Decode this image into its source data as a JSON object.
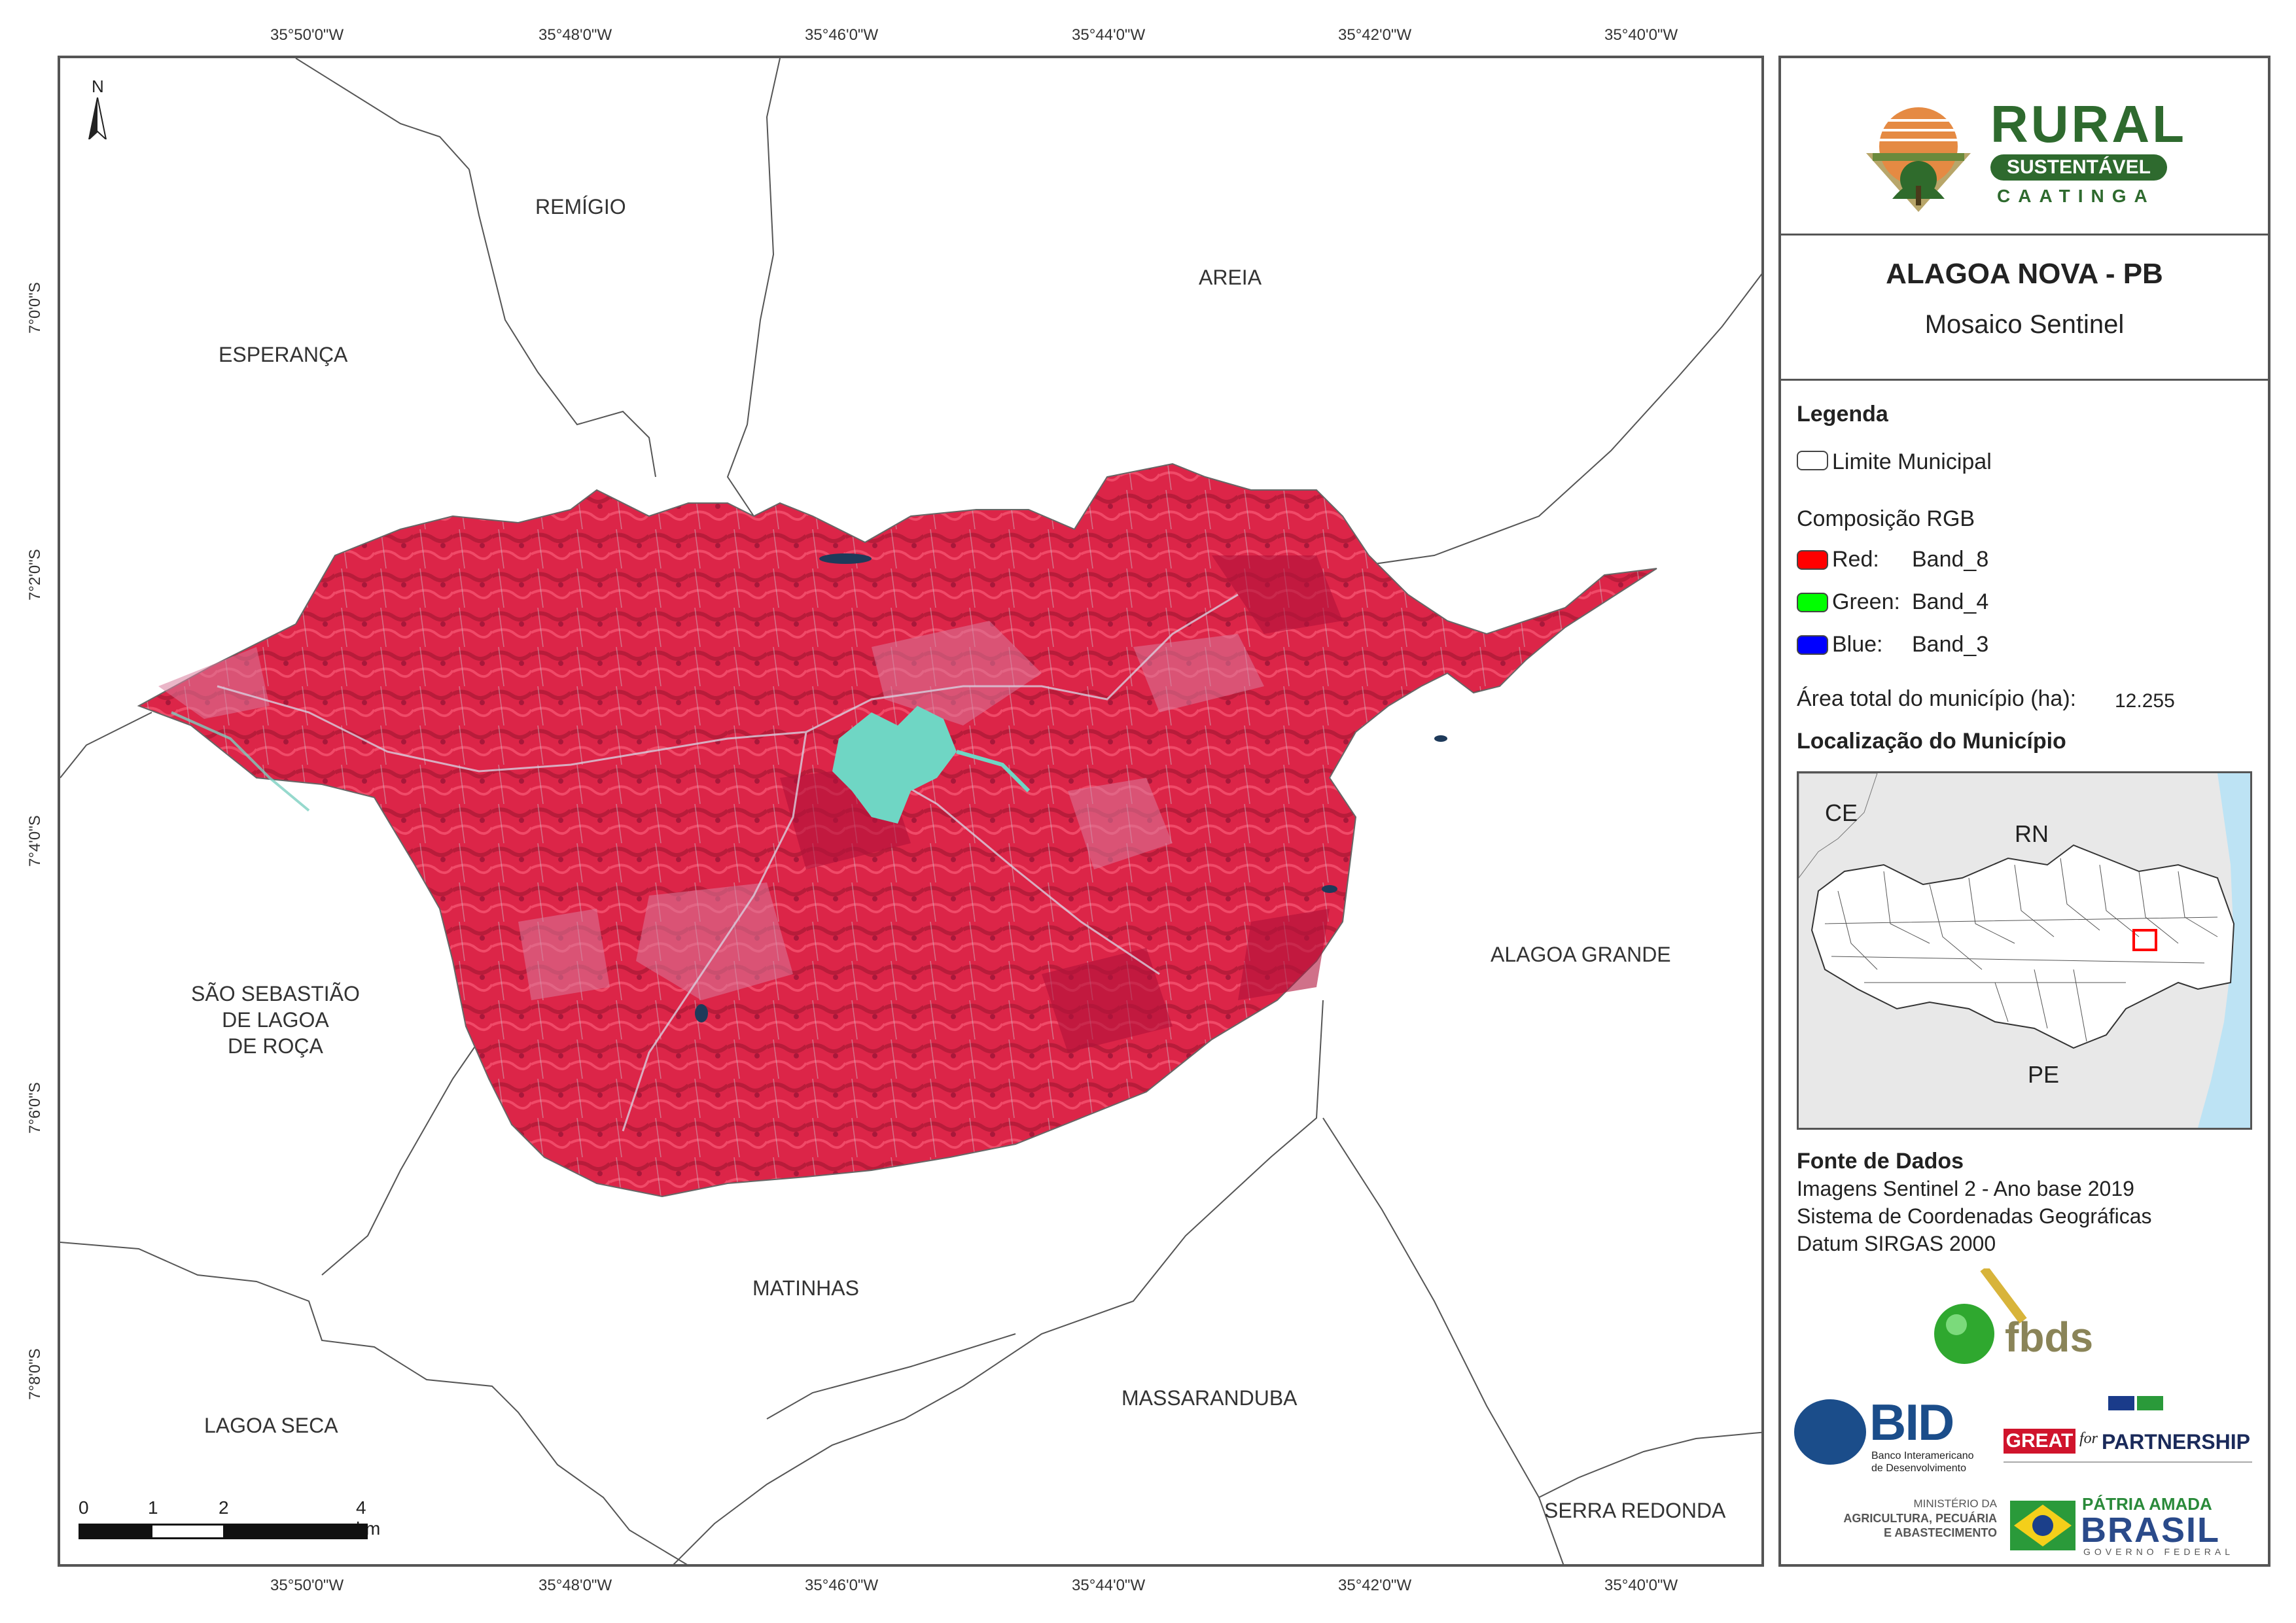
{
  "map": {
    "longitude_ticks": [
      "35°50'0\"W",
      "35°48'0\"W",
      "35°46'0\"W",
      "35°44'0\"W",
      "35°42'0\"W",
      "35°40'0\"W"
    ],
    "latitude_ticks": [
      "7°0'0\"S",
      "7°2'0\"S",
      "7°4'0\"S",
      "7°6'0\"S",
      "7°8'0\"S"
    ],
    "north_label": "N",
    "municipalities": {
      "remigio": "REMÍGIO",
      "areia": "AREIA",
      "esperanca": "ESPERANÇA",
      "sao_sebastiao": "SÃO SEBASTIÃO\nDE LAGOA\nDE ROÇA",
      "alagoa_grande": "ALAGOA GRANDE",
      "matinhas": "MATINHAS",
      "lagoa_seca": "LAGOA SECA",
      "massaranduba": "MASSARANDUBA",
      "serra_redonda": "SERRA REDONDA"
    },
    "scale_bar": {
      "labels": [
        "0",
        "1",
        "2",
        "4 km"
      ]
    },
    "colors": {
      "vegetation": "#e0284a",
      "urban": "#5fd3c0",
      "boundary": "#555555"
    }
  },
  "panel": {
    "logo": {
      "line1": "RURAL",
      "line2": "SUSTENTÁVEL",
      "line3": "CAATINGA"
    },
    "title": "ALAGOA NOVA - PB",
    "subtitle": "Mosaico Sentinel",
    "legend": {
      "heading": "Legenda",
      "limit": "Limite Municipal",
      "rgb_heading": "Composição RGB",
      "red_key": "Red:",
      "red_val": "Band_8",
      "green_key": "Green:",
      "green_val": "Band_4",
      "blue_key": "Blue:",
      "blue_val": "Band_3",
      "area_label": "Área total do município (ha):",
      "area_value": "12.255"
    },
    "location": {
      "heading": "Localização do Município",
      "labels": {
        "ce": "CE",
        "rn": "RN",
        "pe": "PE"
      }
    },
    "source": {
      "heading": "Fonte de Dados",
      "line1": "Imagens Sentinel 2 - Ano base 2019",
      "line2": "Sistema de Coordenadas Geográficas",
      "line3": "Datum SIRGAS 2000"
    },
    "partners": {
      "fbds": "fbds",
      "bid": "BID",
      "bid_sub1": "Banco Interamericano",
      "bid_sub2": "de Desenvolvimento",
      "great": "GREAT",
      "for": "for",
      "partnership": "PARTNERSHIP",
      "ministerio1": "MINISTÉRIO DA",
      "ministerio2": "AGRICULTURA, PECUÁRIA",
      "ministerio3": "E ABASTECIMENTO",
      "patria": "PÁTRIA AMADA",
      "brasil": "BRASIL",
      "governo": "GOVERNO FEDERAL"
    }
  }
}
